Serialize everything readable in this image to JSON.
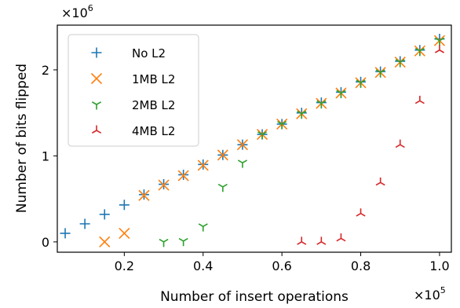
{
  "chart_data": {
    "type": "scatter",
    "xlabel": "Number of insert operations",
    "ylabel": "Number of bits flipped",
    "x_multiplier_label": "×10",
    "x_multiplier_exp": "5",
    "y_multiplier_label": "×10",
    "y_multiplier_exp": "6",
    "xlim": [
      0.03,
      1.03
    ],
    "ylim": [
      -0.12,
      2.52
    ],
    "x_ticks": [
      0.2,
      0.4,
      0.6,
      0.8,
      1.0
    ],
    "x_tick_labels": [
      "0.2",
      "0.4",
      "0.6",
      "0.8",
      "1.0"
    ],
    "y_ticks": [
      0,
      1,
      2
    ],
    "y_tick_labels": [
      "0",
      "1",
      "2"
    ],
    "grid": false,
    "legend_position": "top-left",
    "series": [
      {
        "name": "No L2",
        "marker": "plus",
        "color": "#1f77b4",
        "x": [
          0.05,
          0.1,
          0.15,
          0.2,
          0.25,
          0.3,
          0.35,
          0.4,
          0.45,
          0.5,
          0.55,
          0.6,
          0.65,
          0.7,
          0.75,
          0.8,
          0.85,
          0.9,
          0.95,
          1.0
        ],
        "y": [
          0.1,
          0.21,
          0.32,
          0.43,
          0.55,
          0.67,
          0.78,
          0.9,
          1.01,
          1.13,
          1.25,
          1.37,
          1.5,
          1.62,
          1.74,
          1.86,
          1.98,
          2.1,
          2.23,
          2.36
        ]
      },
      {
        "name": "1MB L2",
        "marker": "x",
        "color": "#ff7f0e",
        "x": [
          0.15,
          0.2,
          0.25,
          0.3,
          0.35,
          0.4,
          0.45,
          0.5,
          0.55,
          0.6,
          0.65,
          0.7,
          0.75,
          0.8,
          0.85,
          0.9,
          0.95,
          1.0
        ],
        "y": [
          0.0,
          0.1,
          0.54,
          0.66,
          0.77,
          0.89,
          1.01,
          1.13,
          1.25,
          1.37,
          1.49,
          1.61,
          1.73,
          1.85,
          1.97,
          2.09,
          2.22,
          2.34
        ]
      },
      {
        "name": "2MB L2",
        "marker": "tri_down",
        "color": "#2ca02c",
        "x": [
          0.3,
          0.35,
          0.4,
          0.45,
          0.5,
          0.55,
          0.6,
          0.65,
          0.7,
          0.75,
          0.8,
          0.85,
          0.9,
          0.95,
          1.0
        ],
        "y": [
          0.0,
          0.01,
          0.18,
          0.64,
          0.92,
          1.25,
          1.37,
          1.49,
          1.61,
          1.73,
          1.85,
          1.97,
          2.09,
          2.22,
          2.34
        ]
      },
      {
        "name": "4MB L2",
        "marker": "tri_up",
        "color": "#d62728",
        "x": [
          0.65,
          0.7,
          0.75,
          0.8,
          0.85,
          0.9,
          0.95,
          1.0
        ],
        "y": [
          0.0,
          0.0,
          0.04,
          0.33,
          0.69,
          1.13,
          1.64,
          2.23
        ]
      }
    ]
  }
}
